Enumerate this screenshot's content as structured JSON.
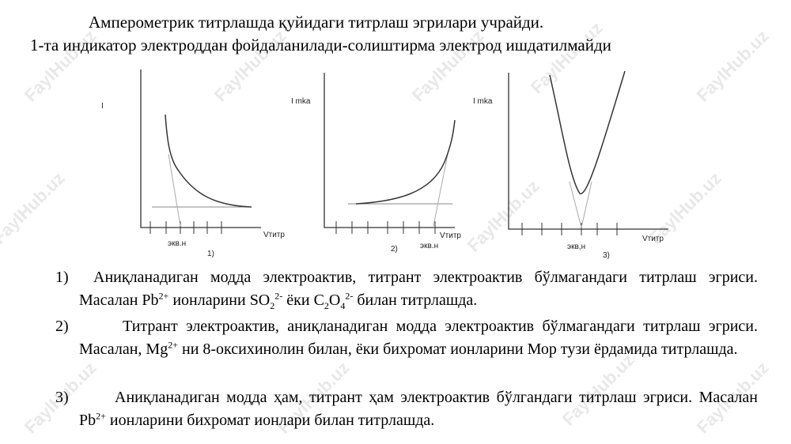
{
  "header": {
    "line1": "Амперометрик титрлашда қуйидаги титрлаш эгрилари учрайди.",
    "line2": "1-та индикатор электроддан фойдаланилади-солиштирма электрод ишдатилмайди"
  },
  "watermark": "FaylHub.uz",
  "graphs": [
    {
      "y_label": "I",
      "x_label": "Vтитр",
      "eq_label": "экв.н",
      "number": "1)"
    },
    {
      "y_label": "I mka",
      "x_label": "Vтитр",
      "eq_label": "экв.н",
      "number": "2)"
    },
    {
      "y_label": "I mka",
      "x_label": "Vтитр",
      "eq_label": "экв,н",
      "number": "3)"
    }
  ],
  "items": [
    {
      "number": "1)",
      "runs": [
        {
          "t": "Аниқланадиган модда электроактив, титрант электроактив бўлмагандаги титрлаш эгриси. Масалан "
        },
        {
          "t": "Pb"
        },
        {
          "sup": "2+"
        },
        {
          "t": " ионларини "
        },
        {
          "t": "SO"
        },
        {
          "sub": "2"
        },
        {
          "sup": "2-"
        },
        {
          "t": " ёки "
        },
        {
          "t": "C"
        },
        {
          "sub": "2"
        },
        {
          "t": "O"
        },
        {
          "sub": "4"
        },
        {
          "sup": "2-"
        },
        {
          "t": " билан титрлашда."
        }
      ]
    },
    {
      "number": "2)",
      "runs": [
        {
          "t": "Титрант электроактив, аниқланадиган модда электроактив бўлмагандаги титрлаш эгриси. Масалан, "
        },
        {
          "t": "Mg"
        },
        {
          "sup": "2+"
        },
        {
          "t": " ни 8-оксихинолин билан, ёки бихромат ионларини Мор тузи ёрдамида титрлашда."
        }
      ]
    },
    {
      "number": "3)",
      "runs": [
        {
          "t": "Аниқланадиган модда ҳам, титрант ҳам электроактив бўлгандаги титрлаш эгриси. Масалан "
        },
        {
          "t": "Pb"
        },
        {
          "sup": "2+"
        },
        {
          "t": " ионларини бихромат ионлари билан титрлашда."
        }
      ]
    }
  ]
}
